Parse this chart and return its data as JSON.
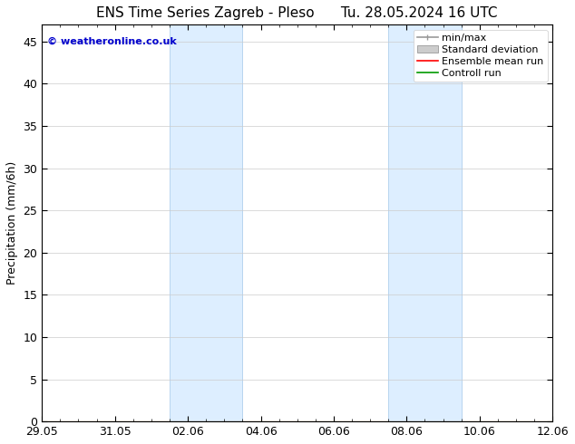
{
  "title": "ENS Time Series Zagreb - Pleso      Tu. 28.05.2024 16 UTC",
  "ylabel": "Precipitation (mm/6h)",
  "watermark": "© weatheronline.co.uk",
  "watermark_color": "#0000cc",
  "ylim": [
    0,
    47
  ],
  "yticks": [
    0,
    5,
    10,
    15,
    20,
    25,
    30,
    35,
    40,
    45
  ],
  "xtick_labels": [
    "29.05",
    "31.05",
    "02.06",
    "04.06",
    "06.06",
    "08.06",
    "10.06",
    "12.06"
  ],
  "xtick_positions": [
    0,
    2,
    4,
    6,
    8,
    10,
    12,
    14
  ],
  "xlim": [
    0,
    14
  ],
  "shaded_bands": [
    {
      "start": 3.5,
      "end": 5.5
    },
    {
      "start": 9.5,
      "end": 11.5
    }
  ],
  "shaded_color": "#ddeeff",
  "shaded_edge_color": "#b8d4ef",
  "legend_labels": [
    "min/max",
    "Standard deviation",
    "Ensemble mean run",
    "Controll run"
  ],
  "minmax_color": "#999999",
  "stddev_color": "#cccccc",
  "ensemble_color": "#ff0000",
  "control_color": "#009900",
  "bg_color": "#ffffff",
  "grid_color": "#cccccc",
  "title_fontsize": 11,
  "ylabel_fontsize": 9,
  "tick_fontsize": 9,
  "legend_fontsize": 8,
  "watermark_fontsize": 8
}
